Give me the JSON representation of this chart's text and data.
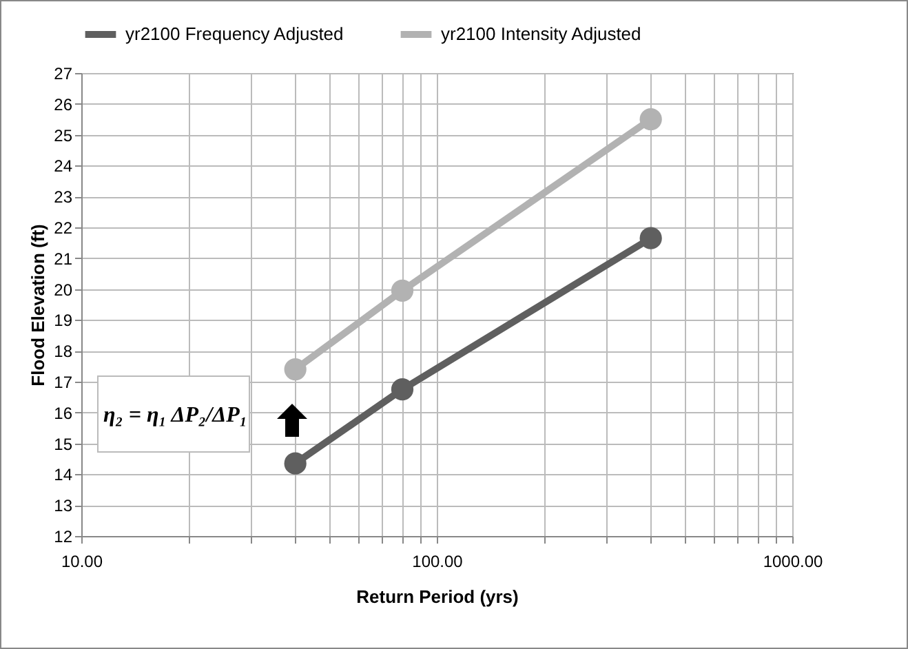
{
  "chart_data": {
    "type": "line",
    "xlabel": "Return Period (yrs)",
    "ylabel": "Flood Elevation (ft)",
    "x": [
      40,
      80,
      400
    ],
    "series": [
      {
        "name": "yr2100 Frequency Adjusted",
        "color": "#5f5f5f",
        "values": [
          14.35,
          16.75,
          21.65
        ]
      },
      {
        "name": "yr2100 Intensity Adjusted",
        "color": "#b2b2b2",
        "values": [
          17.4,
          19.95,
          25.5
        ]
      }
    ],
    "log": "x",
    "xlim": [
      10,
      1000
    ],
    "xticks": [
      {
        "value": 10,
        "label": "10.00"
      },
      {
        "value": 20,
        "label": null
      },
      {
        "value": 30,
        "label": null
      },
      {
        "value": 40,
        "label": null
      },
      {
        "value": 50,
        "label": null
      },
      {
        "value": 60,
        "label": null
      },
      {
        "value": 70,
        "label": null
      },
      {
        "value": 80,
        "label": null
      },
      {
        "value": 90,
        "label": null
      },
      {
        "value": 100,
        "label": "100.00"
      },
      {
        "value": 200,
        "label": null
      },
      {
        "value": 300,
        "label": null
      },
      {
        "value": 400,
        "label": null
      },
      {
        "value": 500,
        "label": null
      },
      {
        "value": 600,
        "label": null
      },
      {
        "value": 700,
        "label": null
      },
      {
        "value": 800,
        "label": null
      },
      {
        "value": 900,
        "label": null
      },
      {
        "value": 1000,
        "label": "1000.00"
      }
    ],
    "ylim": [
      12,
      27
    ],
    "yticks": [
      12,
      13,
      14,
      15,
      16,
      17,
      18,
      19,
      20,
      21,
      22,
      23,
      24,
      25,
      26,
      27
    ],
    "grid": true,
    "legend": "top",
    "marker": "circle",
    "line_style": "solid",
    "annotations": [
      "η₂ = η₁ ΔP₂/ΔP₁"
    ]
  }
}
